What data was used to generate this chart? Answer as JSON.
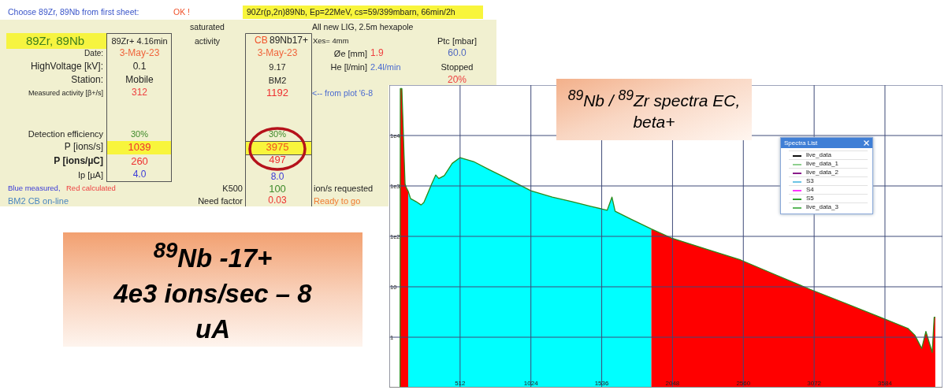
{
  "chart_data": [
    {
      "type": "other",
      "annotations": [
        "Choose 89Zr, 89Nb from first sheet:",
        "OK !",
        "90Zr(p,2n)89Nb, Ep=22MeV, cs=59/399mbarn, 66min/2h",
        "saturated",
        "All new LIG, 2.5m hexapole",
        "89Zr, 89Nb",
        "89Zr+ 4.16min",
        "activity",
        "CB",
        "89Nb17+",
        "Xes= 4mm",
        "Ptc [mbar]",
        "Date:",
        "3-May-23",
        "3-May-23",
        "Øe [mm]",
        "1.9",
        "60.0",
        "HighVoltage [kV]:",
        "0.1",
        "9.17",
        "He [l/min]",
        "2.4l/min",
        "Stopped",
        "Station:",
        "Mobile",
        "BM2",
        "20%",
        "Measured activity [β+/s]",
        "312",
        "1192",
        "<-- from plot '6-8",
        "Detection efficiency",
        "30%",
        "30%",
        "P [ions/s]",
        "1039",
        "3975",
        "P [ions/µC]",
        "260",
        "497",
        "Ip [µA]",
        "4.0",
        "8.0",
        "Blue measured,",
        "Red calculated",
        "K500",
        "100",
        "ion/s requested",
        "BM2 CB on-line",
        "Need factor",
        "0.03",
        "Ready to go",
        "$^{89}$Nb -17+\n4e3 ions/sec – 8\nuA"
      ]
    },
    {
      "type": "area",
      "title": "$^{89}$Nb / $^{89}$Zr spectra EC, beta+",
      "log": "y",
      "xlim": [
        0,
        4000
      ],
      "xticks": [
        512,
        1024,
        1536,
        2048,
        2560,
        3072,
        3584
      ],
      "ylim": [
        0.1,
        100000
      ],
      "yticks": [
        {
          "value": 1,
          "label": "1"
        },
        {
          "value": 10,
          "label": "10"
        },
        {
          "value": 100,
          "label": "1e2"
        },
        {
          "value": 1000,
          "label": "1e3"
        },
        {
          "value": 10000,
          "label": "1e4"
        }
      ],
      "grid": true,
      "series": [
        {
          "type": "area",
          "color": "#ff0000",
          "x": [
            78,
            80,
            91,
            100,
            107,
            114,
            125,
            137
          ],
          "values": [
            0.1,
            85000,
            85000,
            15000,
            4000,
            1100,
            900,
            780
          ]
        },
        {
          "type": "area",
          "color": "#00ffff",
          "x": [
            137,
            154,
            193,
            230,
            250,
            279,
            307,
            336,
            358,
            398,
            455,
            512,
            609,
            723,
            836,
            1024,
            1178,
            1320,
            1462,
            1576,
            1610,
            1633,
            1747,
            1895
          ],
          "values": [
            780,
            560,
            490,
            420,
            470,
            720,
            1100,
            1650,
            1400,
            1600,
            2800,
            3650,
            3050,
            2100,
            1480,
            800,
            600,
            490,
            390,
            330,
            600,
            315,
            220,
            140
          ]
        },
        {
          "type": "area",
          "color": "#ff0000",
          "x": [
            1895,
            2040,
            2300,
            2541,
            2800,
            3043,
            3300,
            3550,
            3750,
            3800,
            3850,
            3880,
            3926,
            3940,
            3948
          ],
          "values": [
            140,
            93,
            55,
            34,
            17,
            8.9,
            4.7,
            2.5,
            1.5,
            1.1,
            0.6,
            1.3,
            0.5,
            2.5,
            2.5
          ]
        },
        {
          "type": "line",
          "color": "#2a8a1a",
          "x": [
            78,
            80,
            91,
            100,
            107,
            114,
            125,
            137,
            154,
            193,
            230,
            250,
            279,
            307,
            336,
            358,
            398,
            455,
            512,
            609,
            723,
            836,
            1024,
            1178,
            1320,
            1462,
            1576,
            1610,
            1633,
            1747,
            1895,
            2040,
            2300,
            2541,
            2800,
            3043,
            3300,
            3550,
            3750,
            3800,
            3850,
            3880,
            3926,
            3940,
            3948
          ],
          "values": [
            0.1,
            85000,
            85000,
            15000,
            4000,
            1100,
            900,
            780,
            560,
            490,
            420,
            470,
            720,
            1100,
            1650,
            1400,
            1600,
            2800,
            3650,
            3050,
            2100,
            1480,
            800,
            600,
            490,
            390,
            330,
            600,
            315,
            220,
            140,
            93,
            55,
            34,
            17,
            8.9,
            4.7,
            2.5,
            1.5,
            1.1,
            0.6,
            1.3,
            0.5,
            2.5,
            2.5
          ]
        }
      ],
      "annotations": [
        "Spectra List",
        "live_data",
        "live_data_1",
        "live_data_2",
        "S3",
        "S4",
        "S5",
        "live_data_3"
      ]
    }
  ]
}
